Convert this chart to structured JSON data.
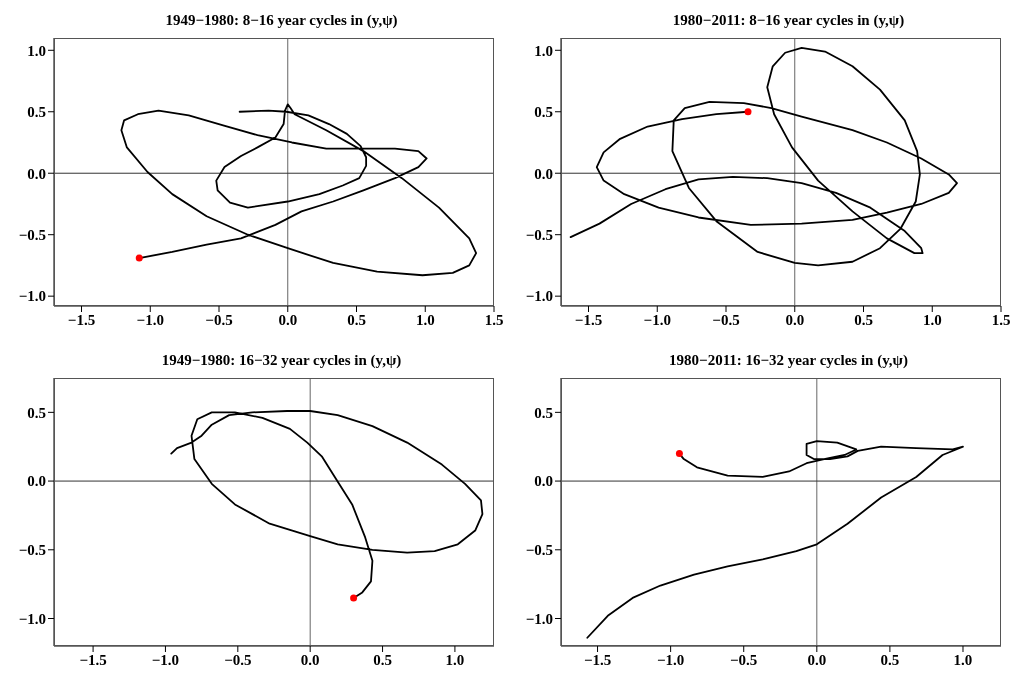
{
  "chart_data": [
    {
      "type": "line",
      "title": "1949−1980: 8−16 year cycles in (y,ψ)",
      "xlim": [
        -1.7,
        1.5
      ],
      "ylim": [
        -1.08,
        1.1
      ],
      "xticks": [
        {
          "value": -1.5,
          "label": "−1.5"
        },
        {
          "value": -1,
          "label": "−1.0"
        },
        {
          "value": -0.5,
          "label": "−0.5"
        },
        {
          "value": 0,
          "label": "0.0"
        },
        {
          "value": 0.5,
          "label": "0.5"
        },
        {
          "value": 1,
          "label": "1.0"
        },
        {
          "value": 1.5,
          "label": "1.5"
        }
      ],
      "yticks": [
        {
          "value": -1,
          "label": "−1.0"
        },
        {
          "value": -0.5,
          "label": "−0.5"
        },
        {
          "value": 0,
          "label": "0.0"
        },
        {
          "value": 0.5,
          "label": "0.5"
        },
        {
          "value": 1,
          "label": "1.0"
        }
      ],
      "ref_lines": [
        {
          "axis": "x",
          "value": 0,
          "color": "#666666"
        },
        {
          "axis": "y",
          "value": 0,
          "color": "#333333"
        }
      ],
      "series": [
        {
          "type": "line",
          "color": "#000000",
          "x": [
            -0.35,
            -0.14,
            -0.01,
            0.15,
            0.3,
            0.43,
            0.53,
            0.57,
            0.57,
            0.52,
            0.4,
            0.23,
            0,
            -0.29,
            -0.42,
            -0.51,
            -0.52,
            -0.46,
            -0.34,
            -0.22,
            -0.09,
            -0.03,
            -0.02,
            0,
            0.02,
            0.05,
            0.28,
            0.55,
            0.83,
            1.1,
            1.32,
            1.37,
            1.32,
            1.2,
            0.98,
            0.65,
            0.33,
            0,
            -0.29,
            -0.59,
            -0.84,
            -1.02,
            -1.17,
            -1.21,
            -1.19,
            -1.09,
            -0.94,
            -0.72,
            -0.47,
            -0.22,
            0.03,
            0.28,
            0.53,
            0.78,
            0.95,
            1.01,
            0.95,
            0.78,
            0.55,
            0.33,
            0.1,
            -0.09,
            -0.34,
            -0.59,
            -0.84,
            -1.08
          ],
          "values": [
            0.5,
            0.51,
            0.5,
            0.47,
            0.4,
            0.32,
            0.22,
            0.13,
            0.06,
            -0.04,
            -0.1,
            -0.17,
            -0.23,
            -0.28,
            -0.24,
            -0.14,
            -0.06,
            0.05,
            0.14,
            0.21,
            0.29,
            0.4,
            0.51,
            0.56,
            0.53,
            0.48,
            0.35,
            0.18,
            -0.04,
            -0.28,
            -0.53,
            -0.65,
            -0.75,
            -0.81,
            -0.83,
            -0.8,
            -0.73,
            -0.61,
            -0.5,
            -0.35,
            -0.17,
            0.01,
            0.21,
            0.35,
            0.43,
            0.48,
            0.51,
            0.47,
            0.39,
            0.31,
            0.25,
            0.2,
            0.2,
            0.2,
            0.18,
            0.12,
            0.05,
            -0.04,
            -0.14,
            -0.23,
            -0.31,
            -0.42,
            -0.53,
            -0.58,
            -0.64,
            -0.69
          ]
        },
        {
          "type": "scatter",
          "color": "#ff0000",
          "marker": "circle",
          "x": [
            -1.08
          ],
          "values": [
            -0.69
          ]
        }
      ]
    },
    {
      "type": "line",
      "title": "1980−2011: 8−16 year cycles in (y,ψ)",
      "xlim": [
        -1.7,
        1.5
      ],
      "ylim": [
        -1.08,
        1.1
      ],
      "xticks": [
        {
          "value": -1.5,
          "label": "−1.5"
        },
        {
          "value": -1,
          "label": "−1.0"
        },
        {
          "value": -0.5,
          "label": "−0.5"
        },
        {
          "value": 0,
          "label": "0.0"
        },
        {
          "value": 0.5,
          "label": "0.5"
        },
        {
          "value": 1,
          "label": "1.0"
        },
        {
          "value": 1.5,
          "label": "1.5"
        }
      ],
      "yticks": [
        {
          "value": -1,
          "label": "−1.0"
        },
        {
          "value": -0.5,
          "label": "−0.5"
        },
        {
          "value": 0,
          "label": "0.0"
        },
        {
          "value": 0.5,
          "label": "0.5"
        },
        {
          "value": 1,
          "label": "1.0"
        }
      ],
      "ref_lines": [
        {
          "axis": "x",
          "value": 0,
          "color": "#666666"
        },
        {
          "axis": "y",
          "value": 0,
          "color": "#333333"
        }
      ],
      "series": [
        {
          "type": "line",
          "color": "#000000",
          "x": [
            -1.63,
            -1.42,
            -1.19,
            -0.94,
            -0.7,
            -0.45,
            -0.2,
            0.05,
            0.3,
            0.55,
            0.8,
            0.92,
            0.93,
            0.87,
            0.67,
            0.42,
            0.17,
            -0.02,
            -0.15,
            -0.2,
            -0.16,
            -0.07,
            0.05,
            0.22,
            0.42,
            0.62,
            0.8,
            0.89,
            0.91,
            0.88,
            0.77,
            0.62,
            0.42,
            0.17,
            0,
            -0.27,
            -0.57,
            -0.77,
            -0.89,
            -0.88,
            -0.8,
            -0.62,
            -0.37,
            -0.17,
            0.05,
            0.42,
            0.67,
            0.92,
            1.12,
            1.18,
            1.12,
            0.92,
            0.67,
            0.42,
            0.05,
            -0.32,
            -0.7,
            -0.99,
            -1.24,
            -1.39,
            -1.44,
            -1.39,
            -1.27,
            -1.07,
            -0.82,
            -0.57,
            -0.34
          ],
          "values": [
            -0.52,
            -0.41,
            -0.25,
            -0.13,
            -0.05,
            -0.03,
            -0.04,
            -0.08,
            -0.16,
            -0.28,
            -0.47,
            -0.61,
            -0.65,
            -0.65,
            -0.53,
            -0.31,
            -0.06,
            0.21,
            0.48,
            0.7,
            0.87,
            0.98,
            1.02,
            0.99,
            0.87,
            0.68,
            0.43,
            0.18,
            -0.01,
            -0.23,
            -0.45,
            -0.61,
            -0.72,
            -0.75,
            -0.73,
            -0.64,
            -0.39,
            -0.12,
            0.18,
            0.43,
            0.53,
            0.58,
            0.57,
            0.53,
            0.46,
            0.35,
            0.25,
            0.12,
            -0.01,
            -0.08,
            -0.16,
            -0.25,
            -0.32,
            -0.38,
            -0.41,
            -0.42,
            -0.36,
            -0.28,
            -0.17,
            -0.06,
            0.05,
            0.17,
            0.28,
            0.38,
            0.44,
            0.48,
            0.5
          ]
        },
        {
          "type": "scatter",
          "color": "#ff0000",
          "marker": "circle",
          "x": [
            -0.34
          ],
          "values": [
            0.5
          ]
        }
      ]
    },
    {
      "type": "line",
      "title": "1949−1980: 16−32 year cycles in (y,ψ)",
      "xlim": [
        -1.77,
        1.27
      ],
      "ylim": [
        -1.2,
        0.75
      ],
      "xticks": [
        {
          "value": -1.5,
          "label": "−1.5"
        },
        {
          "value": -1,
          "label": "−1.0"
        },
        {
          "value": -0.5,
          "label": "−0.5"
        },
        {
          "value": 0,
          "label": "0.0"
        },
        {
          "value": 0.5,
          "label": "0.5"
        },
        {
          "value": 1,
          "label": "1.0"
        }
      ],
      "yticks": [
        {
          "value": -1,
          "label": "−1.0"
        },
        {
          "value": -0.5,
          "label": "−0.5"
        },
        {
          "value": 0,
          "label": "0.0"
        },
        {
          "value": 0.5,
          "label": "0.5"
        }
      ],
      "ref_lines": [
        {
          "axis": "x",
          "value": 0,
          "color": "#666666"
        },
        {
          "axis": "y",
          "value": 0,
          "color": "#333333"
        }
      ],
      "series": [
        {
          "type": "line",
          "color": "#000000",
          "x": [
            -0.96,
            -0.92,
            -0.82,
            -0.75,
            -0.68,
            -0.56,
            -0.4,
            -0.16,
            0,
            0.19,
            0.43,
            0.67,
            0.91,
            1.07,
            1.18,
            1.19,
            1.14,
            1.02,
            0.86,
            0.67,
            0.43,
            0.19,
            0,
            -0.28,
            -0.52,
            -0.68,
            -0.8,
            -0.82,
            -0.78,
            -0.68,
            -0.52,
            -0.33,
            -0.14,
            -0.02,
            0.08,
            0.17,
            0.29,
            0.38,
            0.43,
            0.42,
            0.36,
            0.3
          ],
          "values": [
            0.2,
            0.24,
            0.28,
            0.33,
            0.41,
            0.48,
            0.5,
            0.51,
            0.51,
            0.48,
            0.4,
            0.28,
            0.12,
            -0.02,
            -0.14,
            -0.24,
            -0.36,
            -0.46,
            -0.51,
            -0.52,
            -0.5,
            -0.46,
            -0.4,
            -0.31,
            -0.17,
            -0.02,
            0.16,
            0.33,
            0.45,
            0.5,
            0.5,
            0.46,
            0.38,
            0.28,
            0.18,
            0.03,
            -0.17,
            -0.41,
            -0.58,
            -0.73,
            -0.81,
            -0.85
          ]
        },
        {
          "type": "scatter",
          "color": "#ff0000",
          "marker": "circle",
          "x": [
            0.3
          ],
          "values": [
            -0.85
          ]
        }
      ]
    },
    {
      "type": "line",
      "title": "1980−2011: 16−32 year cycles in (y,ψ)",
      "xlim": [
        -1.75,
        1.26
      ],
      "ylim": [
        -1.2,
        0.75
      ],
      "xticks": [
        {
          "value": -1.5,
          "label": "−1.5"
        },
        {
          "value": -1,
          "label": "−1.0"
        },
        {
          "value": -0.5,
          "label": "−0.5"
        },
        {
          "value": 0,
          "label": "0.0"
        },
        {
          "value": 0.5,
          "label": "0.5"
        },
        {
          "value": 1,
          "label": "1.0"
        }
      ],
      "yticks": [
        {
          "value": -1,
          "label": "−1.0"
        },
        {
          "value": -0.5,
          "label": "−0.5"
        },
        {
          "value": 0,
          "label": "0.0"
        },
        {
          "value": 0.5,
          "label": "0.5"
        }
      ],
      "ref_lines": [
        {
          "axis": "x",
          "value": 0,
          "color": "#666666"
        },
        {
          "axis": "y",
          "value": 0,
          "color": "#333333"
        }
      ],
      "series": [
        {
          "type": "line",
          "color": "#000000",
          "x": [
            -1.57,
            -1.43,
            -1.26,
            -1.07,
            -0.84,
            -0.61,
            -0.37,
            -0.14,
            0,
            0.21,
            0.44,
            0.68,
            0.86,
            1,
            0.93,
            0.68,
            0.44,
            0.28,
            0.21,
            0.09,
            -0.02,
            -0.07,
            -0.07,
            0,
            0.14,
            0.27,
            0.19,
            0.05,
            -0.07,
            -0.19,
            -0.37,
            -0.61,
            -0.82,
            -0.91,
            -0.94
          ],
          "values": [
            -1.14,
            -0.98,
            -0.85,
            -0.76,
            -0.68,
            -0.62,
            -0.57,
            -0.51,
            -0.46,
            -0.31,
            -0.12,
            0.03,
            0.19,
            0.25,
            0.23,
            0.24,
            0.25,
            0.22,
            0.18,
            0.16,
            0.16,
            0.19,
            0.27,
            0.29,
            0.28,
            0.23,
            0.19,
            0.16,
            0.13,
            0.07,
            0.03,
            0.04,
            0.1,
            0.16,
            0.2
          ]
        },
        {
          "type": "scatter",
          "color": "#ff0000",
          "marker": "circle",
          "x": [
            -0.94
          ],
          "values": [
            0.2
          ]
        }
      ]
    }
  ]
}
